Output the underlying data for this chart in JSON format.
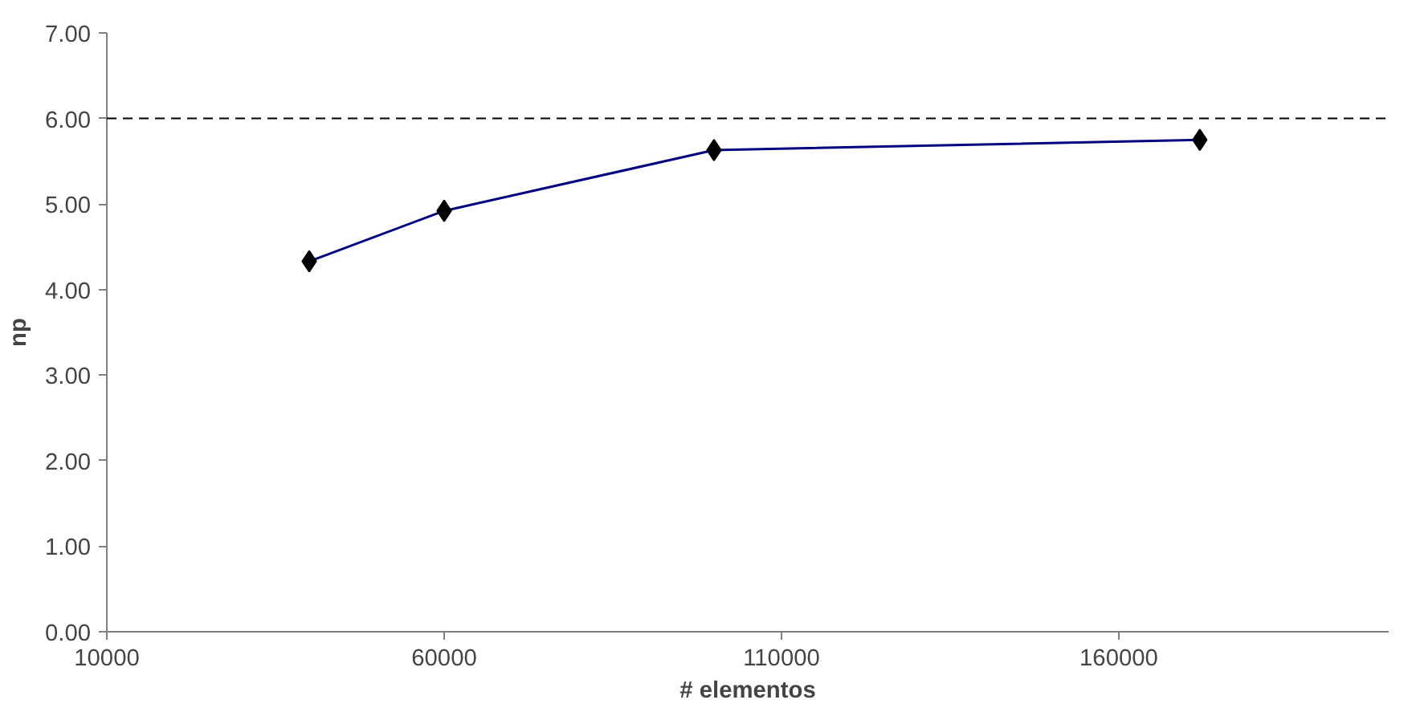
{
  "chart_data": {
    "type": "line",
    "xlabel": "# elementos",
    "ylabel": "np",
    "x": [
      40000,
      60000,
      100000,
      172000
    ],
    "series": [
      {
        "color": "#000080",
        "values": [
          4.33,
          4.92,
          5.63,
          5.75
        ]
      }
    ],
    "marker": "diamond",
    "line_style": "solid",
    "xlim": [
      10000,
      200000
    ],
    "xticks": [
      10000,
      60000,
      110000,
      160000
    ],
    "ylim": [
      0,
      7
    ],
    "yticks": [
      {
        "value": 0,
        "label": "0.00"
      },
      {
        "value": 1,
        "label": "1.00"
      },
      {
        "value": 2,
        "label": "2.00"
      },
      {
        "value": 3,
        "label": "3.00"
      },
      {
        "value": 4,
        "label": "4.00"
      },
      {
        "value": 5,
        "label": "5.00"
      },
      {
        "value": 6,
        "label": "6.00"
      },
      {
        "value": 7,
        "label": "7.00"
      }
    ],
    "ref_lines": [
      {
        "axis": "y",
        "value": 6,
        "label": null,
        "color": "#000000",
        "line_style": "dashed"
      }
    ],
    "grid": false
  }
}
